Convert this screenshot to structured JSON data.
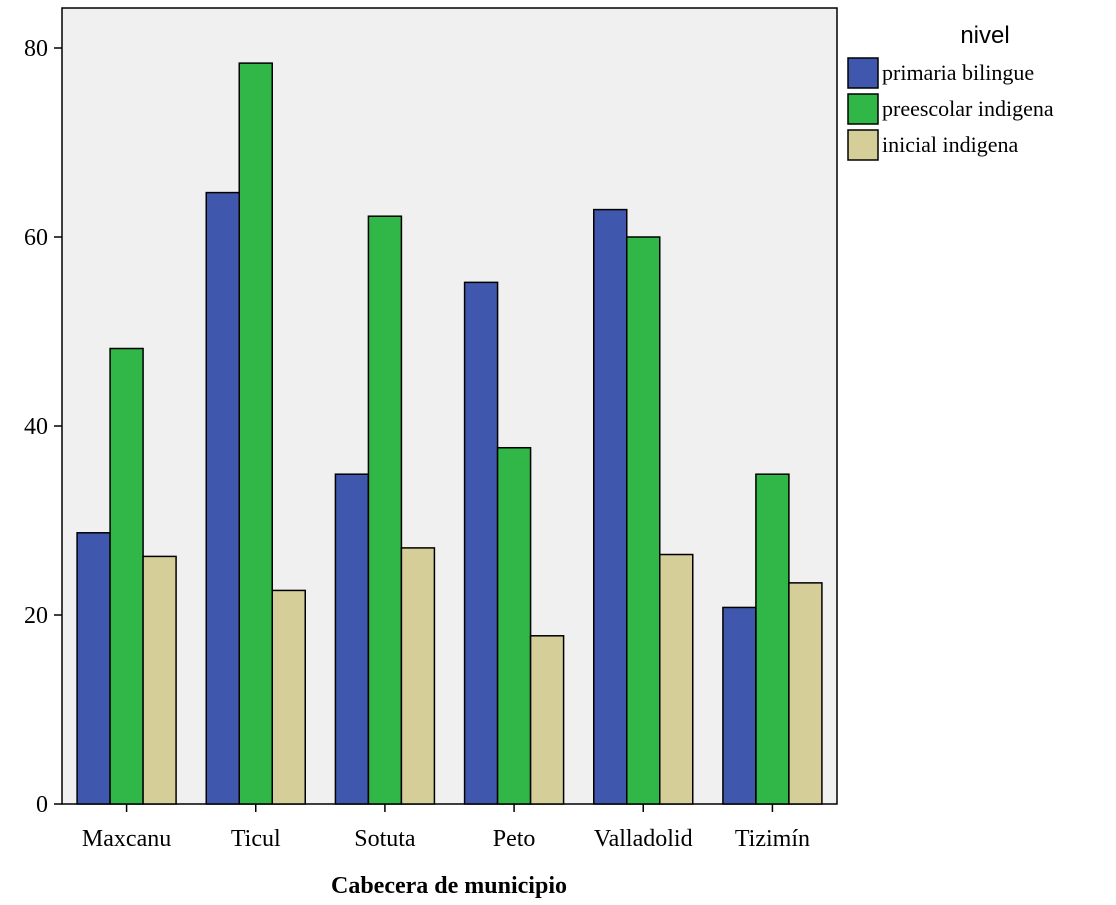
{
  "chart_data": {
    "type": "bar",
    "categories": [
      "Maxcanu",
      "Ticul",
      "Sotuta",
      "Peto",
      "Valladolid",
      "Tizimín"
    ],
    "series": [
      {
        "name": "primaria bilingue",
        "color": "#3f58ad",
        "values": [
          28.7,
          64.7,
          34.9,
          55.2,
          62.9,
          20.8
        ]
      },
      {
        "name": "preescolar indigena",
        "color": "#30b747",
        "values": [
          48.2,
          78.4,
          62.2,
          37.7,
          60.0,
          34.9
        ]
      },
      {
        "name": "inicial indigena",
        "color": "#d5ce99",
        "values": [
          26.2,
          22.6,
          27.1,
          17.8,
          26.4,
          23.4
        ]
      }
    ],
    "title": "",
    "xlabel": "Cabecera de municipio",
    "ylabel": "",
    "ylim": [
      0,
      80
    ],
    "yticks": [
      0,
      20,
      40,
      60,
      80
    ],
    "grid": false,
    "legend": {
      "title": "nivel",
      "position": "right"
    },
    "plot_background": "#f0f0f0"
  }
}
